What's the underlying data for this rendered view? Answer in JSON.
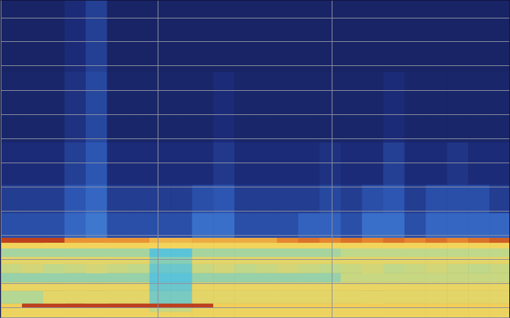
{
  "chart_data": {
    "type": "heatmap",
    "xlim": [
      0,
      718
    ],
    "ylim": [
      0,
      448
    ],
    "xticks": [
      222,
      468
    ],
    "yticks": [
      14,
      48,
      82,
      116,
      150,
      185,
      219,
      253,
      287,
      321,
      356,
      390,
      424
    ],
    "grid": true,
    "tick_labels": false,
    "zlim": [
      0,
      100
    ],
    "x_edges": [
      0,
      30,
      60,
      90,
      120,
      150,
      180,
      210,
      240,
      270,
      300,
      330,
      360,
      390,
      420,
      450,
      480,
      510,
      540,
      570,
      600,
      630,
      660,
      690,
      718
    ],
    "y_edges": [
      0,
      8,
      14,
      20,
      38,
      50,
      63,
      76,
      86,
      98,
      106,
      113,
      148,
      188,
      248,
      348,
      448
    ],
    "cells": [
      [
        74,
        74,
        74,
        74,
        74,
        74,
        74,
        74,
        74,
        74,
        74,
        74,
        74,
        74,
        74,
        74,
        74,
        74,
        74,
        74,
        74,
        74,
        74,
        74
      ],
      [
        74,
        74,
        74,
        74,
        74,
        74,
        74,
        66,
        66,
        74,
        74,
        74,
        74,
        74,
        74,
        74,
        74,
        74,
        74,
        74,
        74,
        74,
        74,
        74
      ],
      [
        76,
        95,
        95,
        95,
        95,
        95,
        95,
        95,
        95,
        95,
        76,
        76,
        76,
        76,
        76,
        76,
        76,
        76,
        76,
        76,
        76,
        76,
        76,
        76
      ],
      [
        62,
        62,
        72,
        72,
        72,
        72,
        72,
        54,
        54,
        72,
        72,
        72,
        72,
        72,
        72,
        72,
        72,
        72,
        72,
        72,
        72,
        72,
        72,
        72
      ],
      [
        73,
        73,
        73,
        73,
        73,
        73,
        73,
        52,
        52,
        73,
        73,
        73,
        73,
        73,
        73,
        73,
        73,
        73,
        73,
        73,
        73,
        73,
        73,
        73
      ],
      [
        58,
        58,
        58,
        58,
        58,
        58,
        58,
        50,
        50,
        58,
        58,
        58,
        58,
        58,
        58,
        58,
        66,
        66,
        66,
        66,
        66,
        66,
        66,
        66
      ],
      [
        66,
        68,
        64,
        66,
        68,
        66,
        64,
        52,
        52,
        66,
        68,
        64,
        66,
        68,
        66,
        64,
        66,
        68,
        64,
        66,
        68,
        66,
        64,
        66
      ],
      [
        72,
        72,
        72,
        72,
        72,
        72,
        72,
        56,
        56,
        72,
        72,
        72,
        72,
        72,
        72,
        72,
        72,
        72,
        72,
        72,
        72,
        72,
        72,
        72
      ],
      [
        60,
        60,
        60,
        60,
        60,
        60,
        60,
        50,
        50,
        60,
        60,
        60,
        60,
        60,
        60,
        60,
        64,
        64,
        64,
        64,
        64,
        64,
        64,
        64
      ],
      [
        75,
        75,
        75,
        75,
        75,
        75,
        75,
        75,
        75,
        75,
        75,
        75,
        75,
        75,
        75,
        75,
        75,
        75,
        75,
        75,
        75,
        75,
        75,
        75
      ],
      [
        95,
        95,
        95,
        86,
        86,
        86,
        86,
        80,
        80,
        82,
        82,
        82,
        82,
        88,
        90,
        88,
        90,
        88,
        90,
        88,
        90,
        88,
        90,
        92
      ],
      [
        22,
        22,
        22,
        28,
        32,
        22,
        22,
        22,
        22,
        30,
        30,
        22,
        22,
        22,
        27,
        27,
        22,
        30,
        30,
        22,
        28,
        28,
        28,
        28
      ],
      [
        17,
        17,
        17,
        24,
        28,
        17,
        17,
        17,
        17,
        22,
        24,
        17,
        17,
        17,
        17,
        20,
        17,
        22,
        24,
        17,
        22,
        22,
        22,
        17
      ],
      [
        12,
        12,
        12,
        18,
        24,
        12,
        12,
        12,
        12,
        12,
        16,
        12,
        12,
        12,
        12,
        14,
        12,
        12,
        18,
        12,
        12,
        15,
        12,
        12
      ],
      [
        9,
        9,
        9,
        14,
        20,
        9,
        9,
        9,
        9,
        9,
        12,
        9,
        9,
        9,
        9,
        9,
        9,
        9,
        12,
        9,
        9,
        9,
        9,
        9
      ],
      [
        8,
        8,
        8,
        12,
        18,
        8,
        8,
        8,
        8,
        8,
        8,
        8,
        8,
        8,
        8,
        8,
        8,
        8,
        8,
        8,
        8,
        8,
        8,
        8
      ]
    ]
  }
}
